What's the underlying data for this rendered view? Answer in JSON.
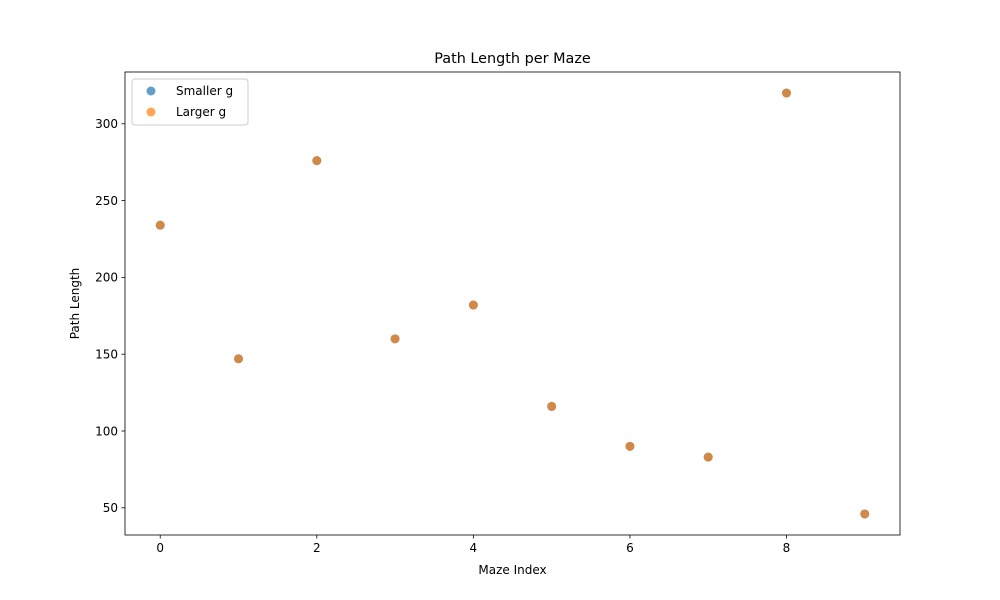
{
  "chart_data": {
    "type": "scatter",
    "title": "Path Length per Maze",
    "xlabel": "Maze Index",
    "ylabel": "Path Length",
    "xlim": [
      -0.45,
      9.45
    ],
    "ylim": [
      32.3,
      333.7
    ],
    "xticks": [
      0,
      2,
      4,
      6,
      8
    ],
    "yticks": [
      50,
      100,
      150,
      200,
      250,
      300
    ],
    "grid": false,
    "legend_position": "top-left",
    "series": [
      {
        "name": "Smaller g",
        "color": "#1f77b4",
        "x": [
          0,
          1,
          2,
          3,
          4,
          5,
          6,
          7,
          8,
          9
        ],
        "y": [
          234,
          147,
          276,
          160,
          182,
          116,
          90,
          83,
          320,
          46
        ]
      },
      {
        "name": "Larger g",
        "color": "#ff7f0e",
        "x": [
          0,
          1,
          2,
          3,
          4,
          5,
          6,
          7,
          8,
          9
        ],
        "y": [
          234,
          147,
          276,
          160,
          182,
          116,
          90,
          83,
          320,
          46
        ]
      }
    ]
  }
}
